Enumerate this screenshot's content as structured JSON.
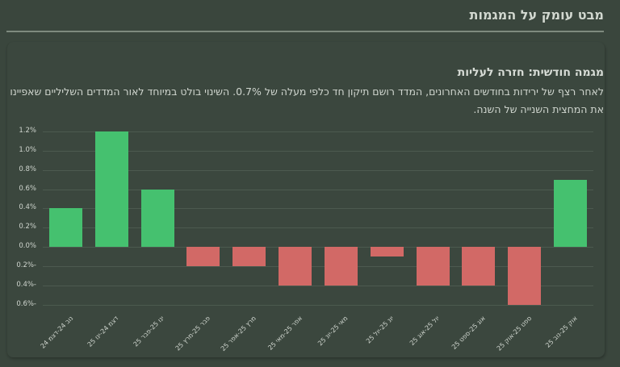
{
  "header": {
    "title": "מבט עומק על המגמות"
  },
  "section": {
    "title": "מגמה חודשית: חזרה לעליות",
    "description": "לאחר רצף של ירידות בחודשים האחרונים, המדד רושם תיקון חד כלפי מעלה של 0.7%. השינוי בולט במיוחד לאור המדדים השליליים שאפיינו את המחצית השנייה של השנה."
  },
  "colors": {
    "positive": "#45c16f",
    "negative": "#d26966",
    "background": "#3a463d"
  },
  "chart_data": {
    "type": "bar",
    "title": "מגמה חודשית: חזרה לעליות",
    "xlabel": "",
    "ylabel": "",
    "categories": [
      "נוב 24-דצמ 24",
      "דצמ 24-ינו 25",
      "ינו 25-פבר 25",
      "פבר 25-מרץ 25",
      "מרץ 25-אפר 25",
      "אפר 25-מאי 25",
      "מאי 25-יונ 25",
      "יונ 25-יול 25",
      "יול 25-אוג 25",
      "אוג 25-ספט 25",
      "ספט 25-אוק 25",
      "אוק 25-נוב 25"
    ],
    "values": [
      0.4,
      1.2,
      0.6,
      -0.2,
      -0.2,
      -0.4,
      -0.4,
      -0.1,
      -0.4,
      -0.4,
      -0.6,
      0.7
    ],
    "unit": "%",
    "ylim": [
      -0.6,
      1.2
    ],
    "yticks": [
      "1.2%",
      "1.0%",
      "0.8%",
      "0.6%",
      "0.4%",
      "0.2%",
      "0.0%",
      "0.2%-",
      "0.4%-",
      "0.6%-"
    ],
    "ytick_values": [
      1.2,
      1.0,
      0.8,
      0.6,
      0.4,
      0.2,
      0.0,
      -0.2,
      -0.4,
      -0.6
    ],
    "grid": true,
    "legend": "none",
    "bar_colors": "green for positive, red for negative"
  }
}
